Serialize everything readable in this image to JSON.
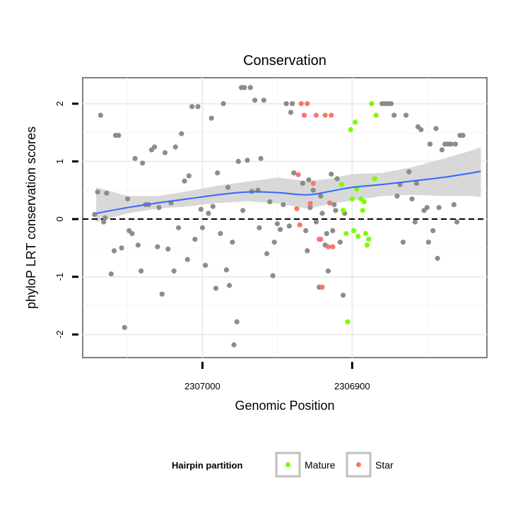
{
  "chart_data": {
    "type": "scatter",
    "title": "Conservation",
    "xlabel": "Genomic Position",
    "ylabel": "phyloP LRT conservation scores",
    "xlim": [
      2307080,
      2306810
    ],
    "ylim": [
      -2.4,
      2.45
    ],
    "x_reversed": true,
    "x_ticks": [
      2307000,
      2306900
    ],
    "x_tick_labels": [
      "2307000",
      "2306900"
    ],
    "y_ticks": [
      -2,
      -1,
      0,
      1,
      2
    ],
    "y_tick_labels": [
      "-2",
      "-1",
      "0",
      "1",
      "2"
    ],
    "reference_line": {
      "y": 0,
      "style": "dashed"
    },
    "legend": {
      "title": "Hairpin partition",
      "placement": "bottom",
      "entries": [
        {
          "label": "Mature",
          "color": "#7cfc00"
        },
        {
          "label": "Star",
          "color": "#f8766d"
        }
      ]
    },
    "colors": {
      "other": "#8c8c8c",
      "Mature": "#7cfc00",
      "Star": "#f8766d",
      "smooth": "#3366ff",
      "band": "#d4d4d4"
    },
    "smooth": {
      "x": [
        2307071,
        2307050,
        2307030,
        2307010,
        2306990,
        2306970,
        2306950,
        2306930,
        2306915,
        2306900,
        2306880,
        2306860,
        2306840,
        2306820,
        2306814
      ],
      "y": [
        0.1,
        0.2,
        0.28,
        0.35,
        0.42,
        0.47,
        0.46,
        0.42,
        0.48,
        0.55,
        0.6,
        0.66,
        0.72,
        0.8,
        0.83
      ],
      "lower": [
        -0.05,
        0.1,
        0.18,
        0.22,
        0.28,
        0.31,
        0.27,
        0.18,
        0.26,
        0.32,
        0.4,
        0.42,
        0.4,
        0.4,
        0.38
      ],
      "upper": [
        0.55,
        0.4,
        0.4,
        0.48,
        0.58,
        0.65,
        0.72,
        0.66,
        0.7,
        0.78,
        0.8,
        0.9,
        1.04,
        1.19,
        1.25
      ]
    },
    "series": [
      {
        "name": "Other",
        "points": [
          [
            2307072,
            0.08
          ],
          [
            2307070,
            0.47
          ],
          [
            2307068,
            1.8
          ],
          [
            2307066,
            -0.05
          ],
          [
            2307065,
            0.02
          ],
          [
            2307064,
            0.45
          ],
          [
            2307061,
            -0.95
          ],
          [
            2307059,
            -0.55
          ],
          [
            2307058,
            1.45
          ],
          [
            2307056,
            1.45
          ],
          [
            2307054,
            -0.5
          ],
          [
            2307052,
            -1.88
          ],
          [
            2307050,
            0.35
          ],
          [
            2307049,
            -0.2
          ],
          [
            2307047,
            -0.25
          ],
          [
            2307045,
            1.05
          ],
          [
            2307043,
            -0.45
          ],
          [
            2307041,
            -0.9
          ],
          [
            2307040,
            0.97
          ],
          [
            2307038,
            0.25
          ],
          [
            2307036,
            0.25
          ],
          [
            2307034,
            1.2
          ],
          [
            2307032,
            1.25
          ],
          [
            2307030,
            -0.48
          ],
          [
            2307029,
            0.2
          ],
          [
            2307027,
            -1.3
          ],
          [
            2307025,
            1.15
          ],
          [
            2307023,
            -0.52
          ],
          [
            2307021,
            0.28
          ],
          [
            2307019,
            -0.9
          ],
          [
            2307018,
            1.25
          ],
          [
            2307016,
            -0.15
          ],
          [
            2307014,
            1.48
          ],
          [
            2307012,
            0.66
          ],
          [
            2307010,
            -0.7
          ],
          [
            2307009,
            0.75
          ],
          [
            2307007,
            1.95
          ],
          [
            2307005,
            -0.35
          ],
          [
            2307003,
            1.95
          ],
          [
            2307001,
            0.17
          ],
          [
            2307000,
            -0.15
          ],
          [
            2306998,
            -0.8
          ],
          [
            2306996,
            0.1
          ],
          [
            2306994,
            1.75
          ],
          [
            2306993,
            0.22
          ],
          [
            2306991,
            -1.2
          ],
          [
            2306990,
            0.8
          ],
          [
            2306988,
            -0.25
          ],
          [
            2306986,
            2.0
          ],
          [
            2306984,
            -0.88
          ],
          [
            2306983,
            0.55
          ],
          [
            2306982,
            -1.15
          ],
          [
            2306980,
            -0.4
          ],
          [
            2306979,
            -2.18
          ],
          [
            2306977,
            -1.78
          ],
          [
            2306976,
            1.0
          ],
          [
            2306974,
            2.28
          ],
          [
            2306973,
            0.15
          ],
          [
            2306972,
            2.28
          ],
          [
            2306970,
            1.02
          ],
          [
            2306968,
            2.28
          ],
          [
            2306967,
            0.48
          ],
          [
            2306965,
            2.06
          ],
          [
            2306963,
            0.5
          ],
          [
            2306962,
            -0.15
          ],
          [
            2306961,
            1.05
          ],
          [
            2306959,
            2.06
          ],
          [
            2306957,
            -0.6
          ],
          [
            2306955,
            0.3
          ],
          [
            2306953,
            -0.98
          ],
          [
            2306952,
            -0.4
          ],
          [
            2306950,
            -0.08
          ],
          [
            2306948,
            -0.18
          ],
          [
            2306946,
            0.25
          ],
          [
            2306944,
            2.0
          ],
          [
            2306942,
            -0.12
          ],
          [
            2306941,
            1.85
          ],
          [
            2306940,
            2.0
          ],
          [
            2306939,
            0.8
          ],
          [
            2306933,
            0.62
          ],
          [
            2306931,
            -0.2
          ],
          [
            2306930,
            -0.55
          ],
          [
            2306929,
            0.68
          ],
          [
            2306928,
            0.2
          ],
          [
            2306926,
            0.5
          ],
          [
            2306924,
            -0.05
          ],
          [
            2306922,
            -1.18
          ],
          [
            2306921,
            0.4
          ],
          [
            2306920,
            0.1
          ],
          [
            2306918,
            -0.45
          ],
          [
            2306917,
            -0.25
          ],
          [
            2306916,
            -0.9
          ],
          [
            2306914,
            0.78
          ],
          [
            2306913,
            -0.2
          ],
          [
            2306912,
            0.25
          ],
          [
            2306911,
            0.15
          ],
          [
            2306910,
            0.7
          ],
          [
            2306908,
            -0.4
          ],
          [
            2306906,
            -1.32
          ],
          [
            2306905,
            0.1
          ],
          [
            2306880,
            2.0
          ],
          [
            2306878,
            2.0
          ],
          [
            2306876,
            2.0
          ],
          [
            2306874,
            2.0
          ],
          [
            2306872,
            1.8
          ],
          [
            2306870,
            0.4
          ],
          [
            2306868,
            0.6
          ],
          [
            2306866,
            -0.4
          ],
          [
            2306864,
            1.8
          ],
          [
            2306862,
            0.82
          ],
          [
            2306860,
            0.35
          ],
          [
            2306858,
            -0.05
          ],
          [
            2306857,
            0.62
          ],
          [
            2306856,
            1.6
          ],
          [
            2306854,
            1.55
          ],
          [
            2306852,
            0.15
          ],
          [
            2306850,
            0.2
          ],
          [
            2306849,
            -0.4
          ],
          [
            2306848,
            1.3
          ],
          [
            2306846,
            -0.2
          ],
          [
            2306844,
            1.57
          ],
          [
            2306843,
            -0.68
          ],
          [
            2306842,
            0.2
          ],
          [
            2306840,
            1.2
          ],
          [
            2306838,
            1.3
          ],
          [
            2306836,
            1.3
          ],
          [
            2306834,
            1.3
          ],
          [
            2306832,
            0.25
          ],
          [
            2306831,
            1.3
          ],
          [
            2306830,
            -0.05
          ],
          [
            2306828,
            1.45
          ],
          [
            2306826,
            1.45
          ]
        ]
      },
      {
        "name": "Mature",
        "points": [
          [
            2306907,
            0.6
          ],
          [
            2306906,
            0.15
          ],
          [
            2306904,
            -0.25
          ],
          [
            2306903,
            -1.78
          ],
          [
            2306901,
            1.55
          ],
          [
            2306900,
            0.35
          ],
          [
            2306899,
            -0.2
          ],
          [
            2306898,
            1.68
          ],
          [
            2306897,
            0.52
          ],
          [
            2306896,
            -0.3
          ],
          [
            2306894,
            0.35
          ],
          [
            2306893,
            0.15
          ],
          [
            2306892,
            0.3
          ],
          [
            2306891,
            -0.25
          ],
          [
            2306890,
            -0.45
          ],
          [
            2306889,
            -0.35
          ],
          [
            2306887,
            2.0
          ],
          [
            2306885,
            0.7
          ],
          [
            2306884,
            1.8
          ]
        ]
      },
      {
        "name": "Star",
        "points": [
          [
            2306937,
            0.18
          ],
          [
            2306936,
            0.77
          ],
          [
            2306935,
            -0.1
          ],
          [
            2306934,
            2.0
          ],
          [
            2306932,
            1.8
          ],
          [
            2306930,
            2.0
          ],
          [
            2306928,
            0.27
          ],
          [
            2306926,
            0.62
          ],
          [
            2306924,
            1.8
          ],
          [
            2306922,
            -0.35
          ],
          [
            2306921,
            -0.35
          ],
          [
            2306920,
            -1.18
          ],
          [
            2306918,
            1.8
          ],
          [
            2306916,
            -0.48
          ],
          [
            2306915,
            0.28
          ],
          [
            2306914,
            1.8
          ],
          [
            2306913,
            -0.48
          ]
        ]
      }
    ]
  }
}
